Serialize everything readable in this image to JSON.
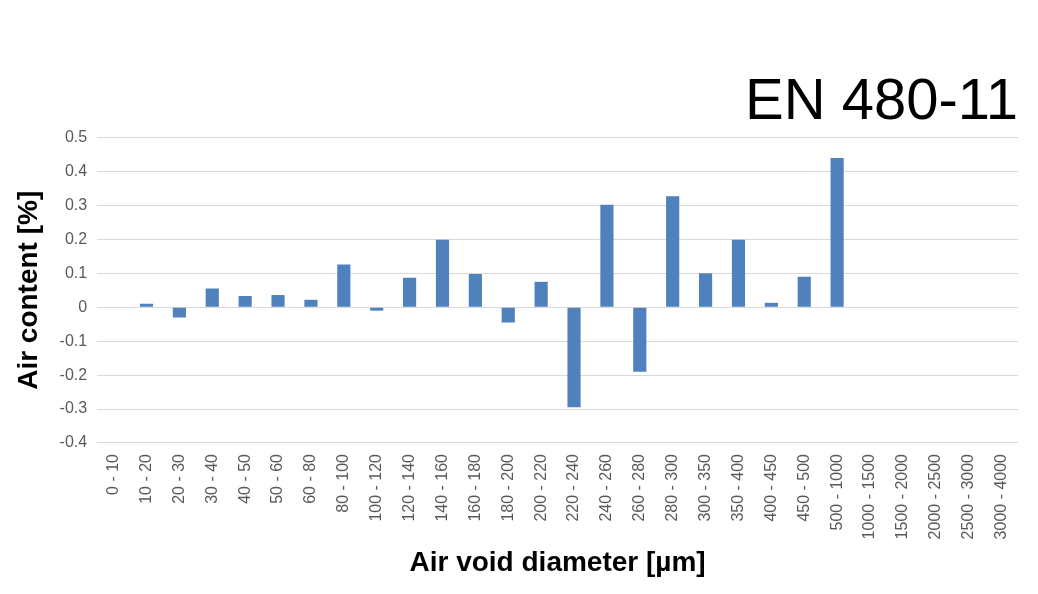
{
  "chart_data": {
    "type": "bar",
    "title": "EN 480-11",
    "xlabel": "Air void diameter [µm]",
    "ylabel": "Air content [%]",
    "categories": [
      "0 - 10",
      "10 - 20",
      "20 - 30",
      "30 - 40",
      "40 - 50",
      "50 - 60",
      "60 - 80",
      "80 - 100",
      "100 - 120",
      "120 - 140",
      "140 - 160",
      "160 - 180",
      "180 - 200",
      "200 - 220",
      "220 - 240",
      "240 - 260",
      "260 - 280",
      "280 - 300",
      "300 - 350",
      "350 - 400",
      "400 - 450",
      "450 - 500",
      "500 - 1000",
      "1000 - 1500",
      "1500 - 2000",
      "2000 - 2500",
      "2500 - 3000",
      "3000 - 4000"
    ],
    "values": [
      0,
      0.01,
      -0.03,
      0.055,
      0.033,
      0.036,
      0.022,
      0.126,
      -0.01,
      0.087,
      0.199,
      0.098,
      -0.045,
      0.075,
      -0.295,
      0.302,
      -0.19,
      0.327,
      0.1,
      0.199,
      0.013,
      0.09,
      0.44,
      0,
      0,
      0,
      0,
      0
    ],
    "color": "#4f81bd",
    "ylim": [
      -0.4,
      0.5
    ],
    "yticks": [
      -0.4,
      -0.3,
      -0.2,
      -0.1,
      0,
      0.1,
      0.2,
      0.3,
      0.4,
      0.5
    ],
    "grid": "y"
  }
}
